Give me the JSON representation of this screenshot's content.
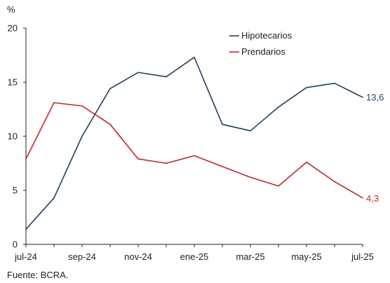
{
  "chart_data": {
    "type": "line",
    "ylabel": "%",
    "ylim": [
      0,
      20
    ],
    "yticks": [
      0,
      5,
      10,
      15,
      20
    ],
    "x": [
      "jul-24",
      "ago-24",
      "sep-24",
      "oct-24",
      "nov-24",
      "dic-24",
      "ene-25",
      "feb-25",
      "mar-25",
      "abr-25",
      "may-25",
      "jun-25",
      "jul-25"
    ],
    "xtick_labels": [
      "jul-24",
      "sep-24",
      "nov-24",
      "ene-25",
      "mar-25",
      "may-25",
      "jul-25"
    ],
    "grid": false,
    "legend_position": "top-right",
    "series": [
      {
        "name": "Hipotecarios",
        "color": "#243f5c",
        "values": [
          1.4,
          4.3,
          10.0,
          14.4,
          15.9,
          15.5,
          17.3,
          11.1,
          10.5,
          12.7,
          14.5,
          14.9,
          13.6
        ],
        "end_label": "13,6"
      },
      {
        "name": "Prendarios",
        "color": "#c0272d",
        "values": [
          7.9,
          13.1,
          12.8,
          11.1,
          7.9,
          7.5,
          8.2,
          7.2,
          6.2,
          5.4,
          7.6,
          5.8,
          4.3
        ],
        "end_label": "4,3"
      }
    ],
    "source": "Fuente: BCRA."
  }
}
